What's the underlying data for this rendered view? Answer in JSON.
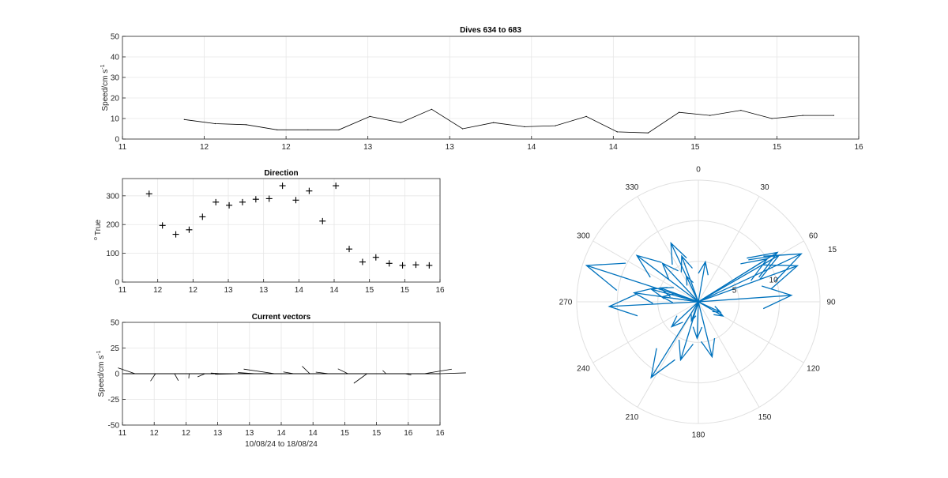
{
  "chart_data": [
    {
      "id": "speed",
      "type": "line",
      "title": "Dives 634 to 683",
      "ylabel": "Speed/cm s",
      "ylabel_sup": "-1",
      "xlim": [
        11,
        16
      ],
      "ylim": [
        0,
        50
      ],
      "xtick_values": [
        11,
        11.5556,
        12.1111,
        12.6667,
        13.2222,
        13.7778,
        14.3333,
        14.8889,
        15.4444,
        16
      ],
      "xtick_labels": [
        "11",
        "12",
        "12",
        "13",
        "13",
        "14",
        "14",
        "15",
        "15",
        "16"
      ],
      "ytick_values": [
        0,
        10,
        20,
        30,
        40,
        50
      ],
      "ytick_labels": [
        "0",
        "10",
        "20",
        "30",
        "40",
        "50"
      ],
      "grid": true,
      "color": "#000000",
      "x": [
        11.42,
        11.63,
        11.84,
        12.05,
        12.26,
        12.47,
        12.68,
        12.89,
        13.1,
        13.31,
        13.52,
        13.73,
        13.94,
        14.15,
        14.36,
        14.57,
        14.78,
        14.99,
        15.2,
        15.41,
        15.62,
        15.83
      ],
      "y": [
        9.5,
        7.5,
        7.0,
        4.5,
        4.5,
        4.5,
        11.0,
        8.0,
        14.5,
        5.0,
        8.0,
        6.0,
        6.5,
        11.0,
        3.5,
        3.0,
        13.0,
        11.5,
        14.0,
        10.0,
        11.5,
        11.5
      ]
    },
    {
      "id": "direction",
      "type": "scatter",
      "title": "Direction",
      "ylabel": "True",
      "ylabel_prefix": "o",
      "marker": "+",
      "xlim": [
        11,
        16
      ],
      "ylim": [
        0,
        360
      ],
      "xtick_values": [
        11,
        11.5556,
        12.1111,
        12.6667,
        13.2222,
        13.7778,
        14.3333,
        14.8889,
        15.4444,
        16
      ],
      "xtick_labels": [
        "11",
        "12",
        "12",
        "13",
        "13",
        "14",
        "14",
        "15",
        "15",
        "16"
      ],
      "ytick_values": [
        0,
        100,
        200,
        300
      ],
      "ytick_labels": [
        "0",
        "100",
        "200",
        "300"
      ],
      "grid": true,
      "x": [
        11.42,
        11.63,
        11.84,
        12.05,
        12.26,
        12.47,
        12.68,
        12.89,
        13.1,
        13.31,
        13.52,
        13.73,
        13.94,
        14.15,
        14.36,
        14.57,
        14.78,
        14.99,
        15.2,
        15.41,
        15.62,
        15.83
      ],
      "y": [
        307,
        197,
        166,
        182,
        227,
        278,
        267,
        278,
        288,
        290,
        335,
        285,
        317,
        212,
        335,
        115,
        70,
        86,
        65,
        58,
        60,
        58
      ]
    },
    {
      "id": "vectors",
      "type": "stick",
      "title": "Current vectors",
      "ylabel": "Speed/cm s",
      "ylabel_sup": "-1",
      "xlabel": "10/08/24 to 18/08/24",
      "xlim": [
        11,
        16
      ],
      "ylim": [
        -50,
        50
      ],
      "xtick_values": [
        11,
        11.5,
        12,
        12.5,
        13,
        13.5,
        14,
        14.5,
        15,
        15.5,
        16
      ],
      "xtick_labels": [
        "11",
        "12",
        "12",
        "13",
        "13",
        "14",
        "14",
        "15",
        "15",
        "16",
        "16"
      ],
      "ytick_values": [
        -50,
        -25,
        0,
        25,
        50
      ],
      "ytick_labels": [
        "-50",
        "-25",
        "0",
        "25",
        "50"
      ],
      "grid": true,
      "x": [
        11.2,
        11.52,
        11.82,
        12.05,
        12.3,
        12.55,
        12.85,
        13.1,
        13.4,
        13.7,
        13.95,
        14.25,
        14.55,
        14.85,
        15.15,
        15.45,
        15.75,
        16.0
      ],
      "speed": [
        9.5,
        7.5,
        7.0,
        4.5,
        4.5,
        4.5,
        11.0,
        8.0,
        14.5,
        5.0,
        8.0,
        6.0,
        6.5,
        11.0,
        3.5,
        3.0,
        13.0,
        11.5
      ],
      "direction": [
        307,
        197,
        166,
        182,
        227,
        278,
        267,
        278,
        288,
        290,
        335,
        285,
        317,
        212,
        335,
        115,
        70,
        86
      ]
    },
    {
      "id": "compass",
      "type": "polar",
      "rlim": [
        0,
        15
      ],
      "r_ticks": [
        5,
        10,
        15
      ],
      "r_tick_labels": [
        "5",
        "10",
        "15"
      ],
      "theta_ticks": [
        0,
        30,
        60,
        90,
        120,
        150,
        180,
        210,
        240,
        270,
        300,
        330
      ],
      "theta_tick_labels": [
        "0",
        "30",
        "60",
        "90",
        "120",
        "150",
        "180",
        "210",
        "240",
        "270",
        "300",
        "330"
      ],
      "color": "#0072BD",
      "direction": [
        307,
        197,
        166,
        182,
        227,
        278,
        267,
        278,
        288,
        290,
        335,
        285,
        317,
        212,
        335,
        115,
        70,
        86,
        65,
        58,
        60,
        58,
        120,
        10,
        200,
        340
      ],
      "speed": [
        9.5,
        7.5,
        7.0,
        4.5,
        4.5,
        4.5,
        11.0,
        8.0,
        14.5,
        5.0,
        8.0,
        6.0,
        6.5,
        11.0,
        3.5,
        3.0,
        13.0,
        11.5,
        14.0,
        10.0,
        11.5,
        11.5,
        3.5,
        5.0,
        2.5,
        6.0
      ]
    }
  ]
}
